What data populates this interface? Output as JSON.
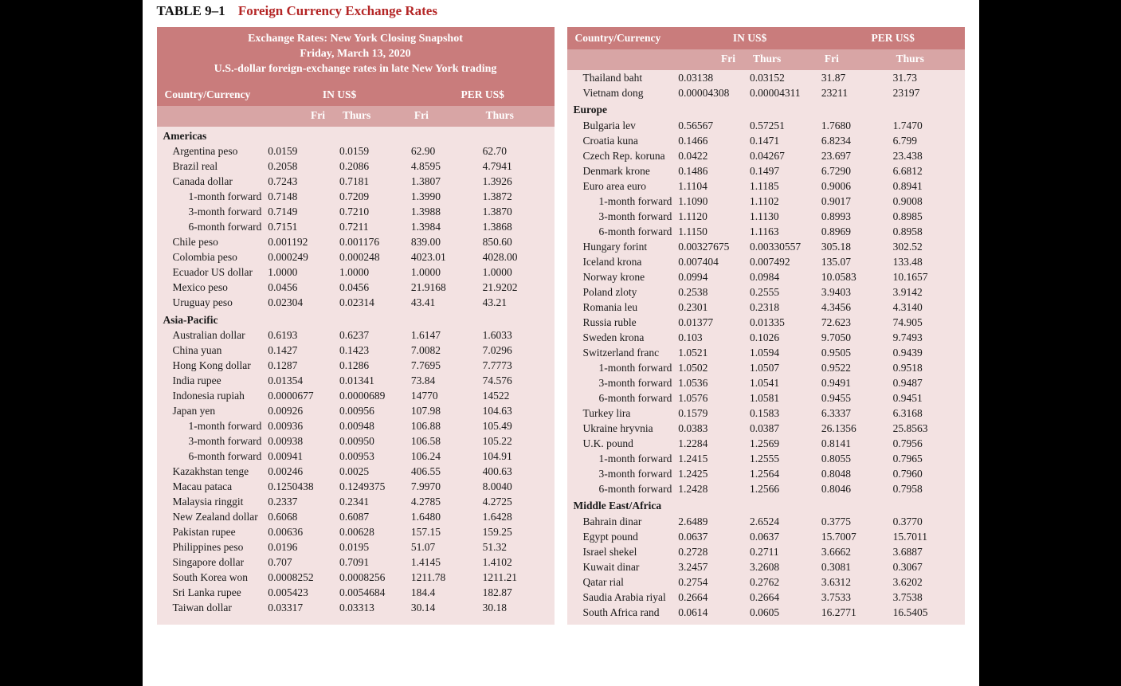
{
  "caption": {
    "num": "TABLE 9–1",
    "title": "Foreign Currency Exchange Rates"
  },
  "banner": {
    "l1": "Exchange Rates: New York Closing Snapshot",
    "l2": "Friday, March 13, 2020",
    "l3": "U.S.-dollar foreign-exchange rates in late New York trading"
  },
  "headers": {
    "c0": "Country/Currency",
    "c1": "IN US$",
    "c2": "PER US$",
    "s1": "Fri",
    "s2": "Thurs",
    "s3": "Fri",
    "s4": "Thurs"
  },
  "colors": {
    "page_bg": "#ffffff",
    "panel_bg": "#f3e2e2",
    "banner_bg": "#c97c7c",
    "subhdr_bg": "#d8a5a5",
    "banner_fg": "#ffffff",
    "title_fg": "#b42626",
    "text_fg": "#1a1a1a"
  },
  "panel_left": [
    {
      "region": "Americas"
    },
    {
      "name": "Argentina peso",
      "v": [
        "0.0159",
        "0.0159",
        "62.90",
        "62.70"
      ]
    },
    {
      "name": "Brazil real",
      "v": [
        "0.2058",
        "0.2086",
        "4.8595",
        "4.7941"
      ]
    },
    {
      "name": "Canada dollar",
      "v": [
        "0.7243",
        "0.7181",
        "1.3807",
        "1.3926"
      ]
    },
    {
      "name": "1-month forward",
      "fwd": true,
      "v": [
        "0.7148",
        "0.7209",
        "1.3990",
        "1.3872"
      ]
    },
    {
      "name": "3-month forward",
      "fwd": true,
      "v": [
        "0.7149",
        "0.7210",
        "1.3988",
        "1.3870"
      ]
    },
    {
      "name": "6-month forward",
      "fwd": true,
      "v": [
        "0.7151",
        "0.7211",
        "1.3984",
        "1.3868"
      ]
    },
    {
      "name": "Chile peso",
      "v": [
        "0.001192",
        "0.001176",
        "839.00",
        "850.60"
      ]
    },
    {
      "name": "Colombia peso",
      "v": [
        "0.000249",
        "0.000248",
        "4023.01",
        "4028.00"
      ]
    },
    {
      "name": "Ecuador US dollar",
      "v": [
        "1.0000",
        "1.0000",
        "1.0000",
        "1.0000"
      ]
    },
    {
      "name": "Mexico peso",
      "v": [
        "0.0456",
        "0.0456",
        "21.9168",
        "21.9202"
      ]
    },
    {
      "name": "Uruguay peso",
      "v": [
        "0.02304",
        "0.02314",
        "43.41",
        "43.21"
      ]
    },
    {
      "region": "Asia-Pacific"
    },
    {
      "name": "Australian dollar",
      "v": [
        "0.6193",
        "0.6237",
        "1.6147",
        "1.6033"
      ]
    },
    {
      "name": "China yuan",
      "v": [
        "0.1427",
        "0.1423",
        "7.0082",
        "7.0296"
      ]
    },
    {
      "name": "Hong Kong dollar",
      "v": [
        "0.1287",
        "0.1286",
        "7.7695",
        "7.7773"
      ]
    },
    {
      "name": "India rupee",
      "v": [
        "0.01354",
        "0.01341",
        "73.84",
        "74.576"
      ]
    },
    {
      "name": "Indonesia rupiah",
      "v": [
        "0.0000677",
        "0.0000689",
        "14770",
        "14522"
      ]
    },
    {
      "name": "Japan yen",
      "v": [
        "0.00926",
        "0.00956",
        "107.98",
        "104.63"
      ]
    },
    {
      "name": "1-month forward",
      "fwd": true,
      "v": [
        "0.00936",
        "0.00948",
        "106.88",
        "105.49"
      ]
    },
    {
      "name": "3-month forward",
      "fwd": true,
      "v": [
        "0.00938",
        "0.00950",
        "106.58",
        "105.22"
      ]
    },
    {
      "name": "6-month forward",
      "fwd": true,
      "v": [
        "0.00941",
        "0.00953",
        "106.24",
        "104.91"
      ]
    },
    {
      "name": "Kazakhstan tenge",
      "v": [
        "0.00246",
        "0.0025",
        "406.55",
        "400.63"
      ]
    },
    {
      "name": "Macau pataca",
      "v": [
        "0.1250438",
        "0.1249375",
        "7.9970",
        "8.0040"
      ]
    },
    {
      "name": "Malaysia ringgit",
      "v": [
        "0.2337",
        "0.2341",
        "4.2785",
        "4.2725"
      ]
    },
    {
      "name": "New Zealand dollar",
      "v": [
        "0.6068",
        "0.6087",
        "1.6480",
        "1.6428"
      ]
    },
    {
      "name": "Pakistan rupee",
      "v": [
        "0.00636",
        "0.00628",
        "157.15",
        "159.25"
      ]
    },
    {
      "name": "Philippines peso",
      "v": [
        "0.0196",
        "0.0195",
        "51.07",
        "51.32"
      ]
    },
    {
      "name": "Singapore dollar",
      "v": [
        "0.707",
        "0.7091",
        "1.4145",
        "1.4102"
      ]
    },
    {
      "name": "South Korea won",
      "v": [
        "0.0008252",
        "0.0008256",
        "1211.78",
        "1211.21"
      ]
    },
    {
      "name": "Sri Lanka rupee",
      "v": [
        "0.005423",
        "0.0054684",
        "184.4",
        "182.87"
      ]
    },
    {
      "name": "Taiwan dollar",
      "v": [
        "0.03317",
        "0.03313",
        "30.14",
        "30.18"
      ]
    }
  ],
  "panel_right": [
    {
      "name": "Thailand baht",
      "v": [
        "0.03138",
        "0.03152",
        "31.87",
        "31.73"
      ]
    },
    {
      "name": "Vietnam dong",
      "v": [
        "0.00004308",
        "0.00004311",
        "23211",
        "23197"
      ]
    },
    {
      "region": "Europe"
    },
    {
      "name": "Bulgaria lev",
      "v": [
        "0.56567",
        "0.57251",
        "1.7680",
        "1.7470"
      ]
    },
    {
      "name": "Croatia kuna",
      "v": [
        "0.1466",
        "0.1471",
        "6.8234",
        "6.799"
      ]
    },
    {
      "name": "Czech Rep. koruna",
      "v": [
        "0.0422",
        "0.04267",
        "23.697",
        "23.438"
      ]
    },
    {
      "name": "Denmark krone",
      "v": [
        "0.1486",
        "0.1497",
        "6.7290",
        "6.6812"
      ]
    },
    {
      "name": "Euro area euro",
      "v": [
        "1.1104",
        "1.1185",
        "0.9006",
        "0.8941"
      ]
    },
    {
      "name": "1-month forward",
      "fwd": true,
      "v": [
        "1.1090",
        "1.1102",
        "0.9017",
        "0.9008"
      ]
    },
    {
      "name": "3-month forward",
      "fwd": true,
      "v": [
        "1.1120",
        "1.1130",
        "0.8993",
        "0.8985"
      ]
    },
    {
      "name": "6-month forward",
      "fwd": true,
      "v": [
        "1.1150",
        "1.1163",
        "0.8969",
        "0.8958"
      ]
    },
    {
      "name": "Hungary forint",
      "v": [
        "0.00327675",
        "0.00330557",
        "305.18",
        "302.52"
      ]
    },
    {
      "name": "Iceland krona",
      "v": [
        "0.007404",
        "0.007492",
        "135.07",
        "133.48"
      ]
    },
    {
      "name": "Norway krone",
      "v": [
        "0.0994",
        "0.0984",
        "10.0583",
        "10.1657"
      ]
    },
    {
      "name": "Poland zloty",
      "v": [
        "0.2538",
        "0.2555",
        "3.9403",
        "3.9142"
      ]
    },
    {
      "name": "Romania leu",
      "v": [
        "0.2301",
        "0.2318",
        "4.3456",
        "4.3140"
      ]
    },
    {
      "name": "Russia ruble",
      "v": [
        "0.01377",
        "0.01335",
        "72.623",
        "74.905"
      ]
    },
    {
      "name": "Sweden krona",
      "v": [
        "0.103",
        "0.1026",
        "9.7050",
        "9.7493"
      ]
    },
    {
      "name": "Switzerland franc",
      "v": [
        "1.0521",
        "1.0594",
        "0.9505",
        "0.9439"
      ]
    },
    {
      "name": "1-month forward",
      "fwd": true,
      "v": [
        "1.0502",
        "1.0507",
        "0.9522",
        "0.9518"
      ]
    },
    {
      "name": "3-month forward",
      "fwd": true,
      "v": [
        "1.0536",
        "1.0541",
        "0.9491",
        "0.9487"
      ]
    },
    {
      "name": "6-month forward",
      "fwd": true,
      "v": [
        "1.0576",
        "1.0581",
        "0.9455",
        "0.9451"
      ]
    },
    {
      "name": "Turkey lira",
      "v": [
        "0.1579",
        "0.1583",
        "6.3337",
        "6.3168"
      ]
    },
    {
      "name": "Ukraine hryvnia",
      "v": [
        "0.0383",
        "0.0387",
        "26.1356",
        "25.8563"
      ]
    },
    {
      "name": "U.K. pound",
      "v": [
        "1.2284",
        "1.2569",
        "0.8141",
        "0.7956"
      ]
    },
    {
      "name": "1-month forward",
      "fwd": true,
      "v": [
        "1.2415",
        "1.2555",
        "0.8055",
        "0.7965"
      ]
    },
    {
      "name": "3-month forward",
      "fwd": true,
      "v": [
        "1.2425",
        "1.2564",
        "0.8048",
        "0.7960"
      ]
    },
    {
      "name": "6-month forward",
      "fwd": true,
      "v": [
        "1.2428",
        "1.2566",
        "0.8046",
        "0.7958"
      ]
    },
    {
      "region": "Middle East/Africa"
    },
    {
      "name": "Bahrain dinar",
      "v": [
        "2.6489",
        "2.6524",
        "0.3775",
        "0.3770"
      ]
    },
    {
      "name": "Egypt pound",
      "v": [
        "0.0637",
        "0.0637",
        "15.7007",
        "15.7011"
      ]
    },
    {
      "name": "Israel shekel",
      "v": [
        "0.2728",
        "0.2711",
        "3.6662",
        "3.6887"
      ]
    },
    {
      "name": "Kuwait dinar",
      "v": [
        "3.2457",
        "3.2608",
        "0.3081",
        "0.3067"
      ]
    },
    {
      "name": "Qatar rial",
      "v": [
        "0.2754",
        "0.2762",
        "3.6312",
        "3.6202"
      ]
    },
    {
      "name": "Saudia Arabia riyal",
      "v": [
        "0.2664",
        "0.2664",
        "3.7533",
        "3.7538"
      ]
    },
    {
      "name": "South Africa rand",
      "v": [
        "0.0614",
        "0.0605",
        "16.2771",
        "16.5405"
      ]
    }
  ]
}
